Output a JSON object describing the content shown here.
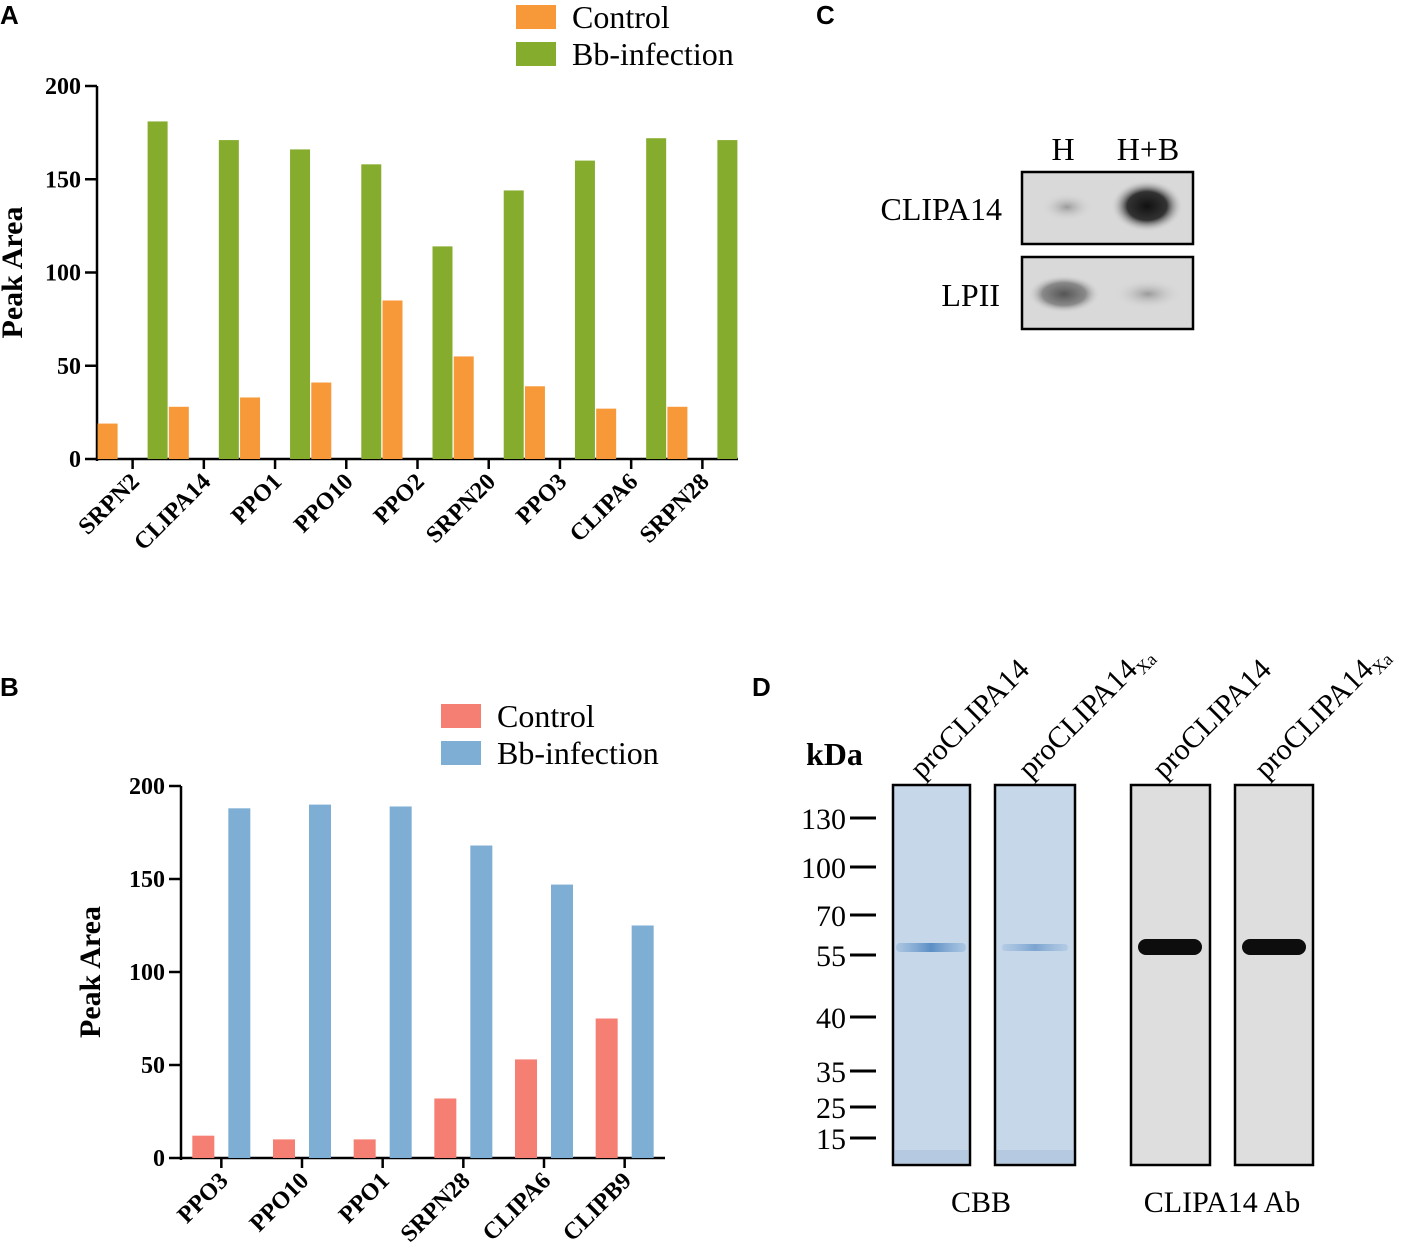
{
  "chart_data": [
    {
      "panel": "A",
      "type": "bar",
      "ylabel": "Peak Area",
      "xlabel": "",
      "ylim": [
        0,
        200
      ],
      "yticks": [
        0,
        50,
        100,
        150,
        200
      ],
      "legend_position": "top-center",
      "categories": [
        "SRPN2",
        "CLIPA14",
        "PPO1",
        "PPO10",
        "PPO2",
        "SRPN20",
        "PPO3",
        "CLIPA6",
        "SRPN28"
      ],
      "series": [
        {
          "name": "Control",
          "color": "#F89939",
          "values": [
            19,
            28,
            33,
            41,
            85,
            55,
            39,
            27,
            28
          ]
        },
        {
          "name": "Bb-infection",
          "color": "#86AC2E",
          "values": [
            181,
            171,
            166,
            158,
            114,
            144,
            160,
            172,
            171
          ]
        }
      ]
    },
    {
      "panel": "B",
      "type": "bar",
      "ylabel": "Peak Area",
      "xlabel": "",
      "ylim": [
        0,
        200
      ],
      "yticks": [
        0,
        50,
        100,
        150,
        200
      ],
      "legend_position": "top-right",
      "categories": [
        "PPO3",
        "PPO10",
        "PPO1",
        "SRPN28",
        "CLIPA6",
        "CLIPB9"
      ],
      "series": [
        {
          "name": "Control",
          "color": "#F47F72",
          "values": [
            12,
            10,
            10,
            32,
            53,
            75
          ]
        },
        {
          "name": "Bb-infection",
          "color": "#7EAED3",
          "values": [
            188,
            190,
            189,
            168,
            147,
            125
          ]
        }
      ]
    }
  ],
  "panelC": {
    "letter": "C",
    "lanes": [
      "H",
      "H+B"
    ],
    "rows": [
      "CLIPA14",
      "LPII"
    ]
  },
  "panelD": {
    "letter": "D",
    "unit": "kDa",
    "markers": [
      "130",
      "100",
      "70",
      "55",
      "40",
      "35",
      "25",
      "15"
    ],
    "lane1": "proCLIPA14",
    "lane2": "proCLIPA14",
    "lane2_sub": "Xa",
    "lane3": "proCLIPA14",
    "lane4": "proCLIPA14",
    "lane4_sub": "Xa",
    "group1": "CBB",
    "group2": "CLIPA14 Ab"
  },
  "panelLetters": {
    "a": "A",
    "b": "B"
  }
}
